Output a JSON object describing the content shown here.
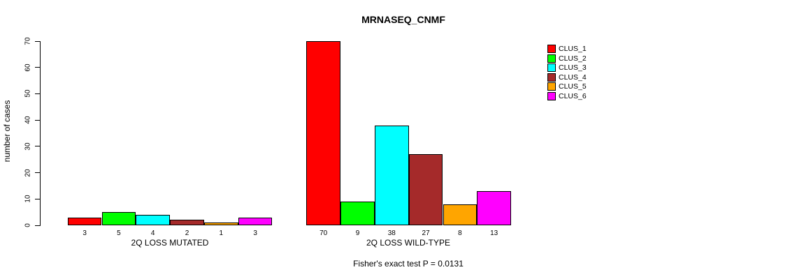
{
  "chart_data": {
    "type": "bar",
    "title": "MRNASEQ_CNMF",
    "ylabel": "number of cases",
    "ylim": [
      0,
      70
    ],
    "yticks": [
      0,
      10,
      20,
      30,
      40,
      50,
      60,
      70
    ],
    "grid": false,
    "legend_position": "top-right",
    "categories": [
      "2Q LOSS MUTATED",
      "2Q LOSS WILD-TYPE"
    ],
    "series": [
      {
        "name": "CLUS_1",
        "color": "#FF0000",
        "values": [
          3,
          70
        ]
      },
      {
        "name": "CLUS_2",
        "color": "#00FF00",
        "values": [
          5,
          9
        ]
      },
      {
        "name": "CLUS_3",
        "color": "#00FFFF",
        "values": [
          4,
          38
        ]
      },
      {
        "name": "CLUS_4",
        "color": "#A52A2A",
        "values": [
          2,
          27
        ]
      },
      {
        "name": "CLUS_5",
        "color": "#FFA500",
        "values": [
          1,
          8
        ]
      },
      {
        "name": "CLUS_6",
        "color": "#FF00FF",
        "values": [
          3,
          13
        ]
      }
    ],
    "bar_value_labels_shown": true,
    "annotation": "Fisher's exact test P = 0.0131"
  }
}
